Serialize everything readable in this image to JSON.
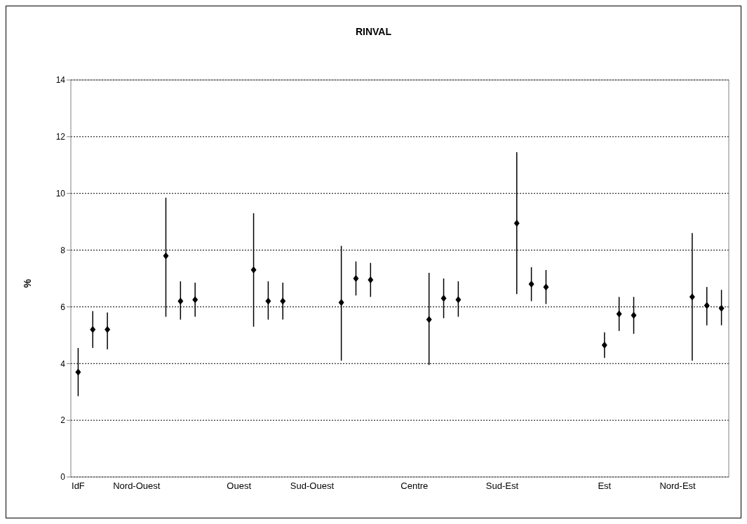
{
  "chart_data": {
    "type": "scatter",
    "title": "RINVAL",
    "ylabel": "%",
    "categories": [
      "IdF",
      null,
      null,
      null,
      "Nord-Ouest",
      null,
      null,
      null,
      null,
      null,
      null,
      "Ouest",
      null,
      null,
      null,
      null,
      "Sud-Ouest",
      null,
      null,
      null,
      null,
      null,
      null,
      "Centre",
      null,
      null,
      null,
      null,
      null,
      "Sud-Est",
      null,
      null,
      null,
      null,
      null,
      null,
      "Est",
      null,
      null,
      null,
      null,
      "Nord-Est",
      null,
      null,
      null
    ],
    "values": [
      3.7,
      5.2,
      5.2,
      null,
      null,
      null,
      7.8,
      6.2,
      6.25,
      null,
      null,
      null,
      7.3,
      6.2,
      6.2,
      null,
      null,
      null,
      6.15,
      7.0,
      6.95,
      null,
      null,
      null,
      5.55,
      6.3,
      6.25,
      null,
      null,
      null,
      8.95,
      6.8,
      6.7,
      null,
      null,
      null,
      4.65,
      5.75,
      5.7,
      null,
      null,
      null,
      6.35,
      6.05,
      5.95
    ],
    "errors": [
      [
        2.85,
        4.55
      ],
      [
        4.55,
        5.85
      ],
      [
        4.5,
        5.8
      ],
      null,
      null,
      null,
      [
        5.65,
        9.85
      ],
      [
        5.55,
        6.9
      ],
      [
        5.65,
        6.85
      ],
      null,
      null,
      null,
      [
        5.3,
        9.3
      ],
      [
        5.55,
        6.9
      ],
      [
        5.55,
        6.85
      ],
      null,
      null,
      null,
      [
        4.1,
        8.15
      ],
      [
        6.4,
        7.6
      ],
      [
        6.35,
        7.55
      ],
      null,
      null,
      null,
      [
        3.95,
        7.2
      ],
      [
        5.6,
        7.0
      ],
      [
        5.65,
        6.9
      ],
      null,
      null,
      null,
      [
        6.45,
        11.45
      ],
      [
        6.2,
        7.4
      ],
      [
        6.1,
        7.3
      ],
      null,
      null,
      null,
      [
        4.2,
        5.1
      ],
      [
        5.15,
        6.35
      ],
      [
        5.05,
        6.35
      ],
      null,
      null,
      null,
      [
        4.1,
        8.6
      ],
      [
        5.35,
        6.7
      ],
      [
        5.35,
        6.6
      ]
    ],
    "color": "#000000",
    "marker": "diamond",
    "ylim": [
      0,
      14
    ],
    "yticks": [
      0,
      2,
      4,
      6,
      8,
      10,
      12,
      14
    ],
    "grid": "y"
  }
}
